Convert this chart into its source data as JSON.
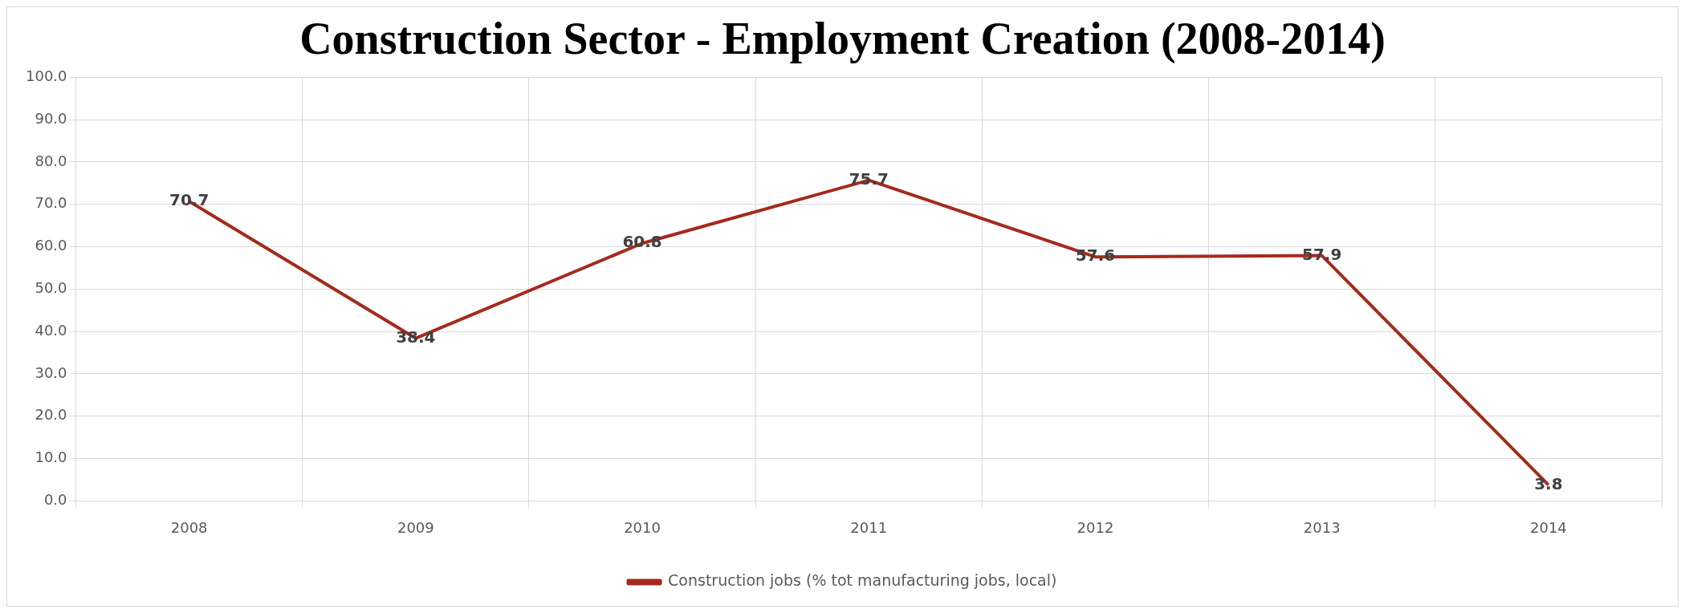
{
  "chart_data": {
    "type": "line",
    "title": "Construction Sector - Employment Creation (2008-2014)",
    "categories": [
      "2008",
      "2009",
      "2010",
      "2011",
      "2012",
      "2013",
      "2014"
    ],
    "series": [
      {
        "name": "Construction jobs (% tot manufacturing jobs, local)",
        "color": "#a52a1c",
        "values": [
          70.7,
          38.4,
          60.8,
          75.7,
          57.6,
          57.9,
          3.8
        ]
      }
    ],
    "ylim": [
      0,
      100
    ],
    "yticks": [
      {
        "value": 0,
        "label": "0.0"
      },
      {
        "value": 10,
        "label": "10.0"
      },
      {
        "value": 20,
        "label": "20.0"
      },
      {
        "value": 30,
        "label": "30.0"
      },
      {
        "value": 40,
        "label": "40.0"
      },
      {
        "value": 50,
        "label": "50.0"
      },
      {
        "value": 60,
        "label": "60.0"
      },
      {
        "value": 70,
        "label": "70.0"
      },
      {
        "value": 80,
        "label": "80.0"
      },
      {
        "value": 90,
        "label": "90.0"
      },
      {
        "value": 100,
        "label": "100.0"
      }
    ],
    "grid": true,
    "legend": "bottom",
    "marker": "none",
    "line_style": "solid",
    "data_labels": true
  }
}
